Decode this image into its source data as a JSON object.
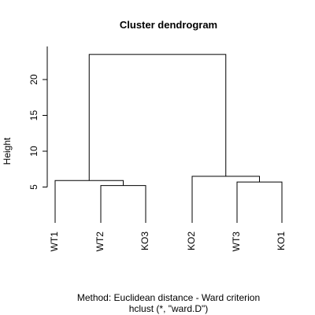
{
  "chart_data": {
    "type": "dendrogram",
    "title": "Cluster dendrogram",
    "ylabel": "Height",
    "yticks": [
      5,
      10,
      15,
      20
    ],
    "ylim": [
      0,
      25
    ],
    "leaves": [
      "WT1",
      "WT2",
      "KO3",
      "KO2",
      "WT3",
      "KO1"
    ],
    "merges": [
      {
        "left": "WT2",
        "right": "KO3",
        "height": 5.2
      },
      {
        "left": "WT3",
        "right": "KO1",
        "height": 5.7
      },
      {
        "left": "WT1",
        "right": "(WT2,KO3)",
        "height": 5.9
      },
      {
        "left": "KO2",
        "right": "(WT3,KO1)",
        "height": 6.5
      },
      {
        "left": "(WT1,WT2,KO3)",
        "right": "(KO2,WT3,KO1)",
        "height": 23.5
      }
    ],
    "subtitle_line1": "Method: Euclidean distance - Ward criterion",
    "subtitle_line2": "hclust (*, \"ward.D\")"
  }
}
